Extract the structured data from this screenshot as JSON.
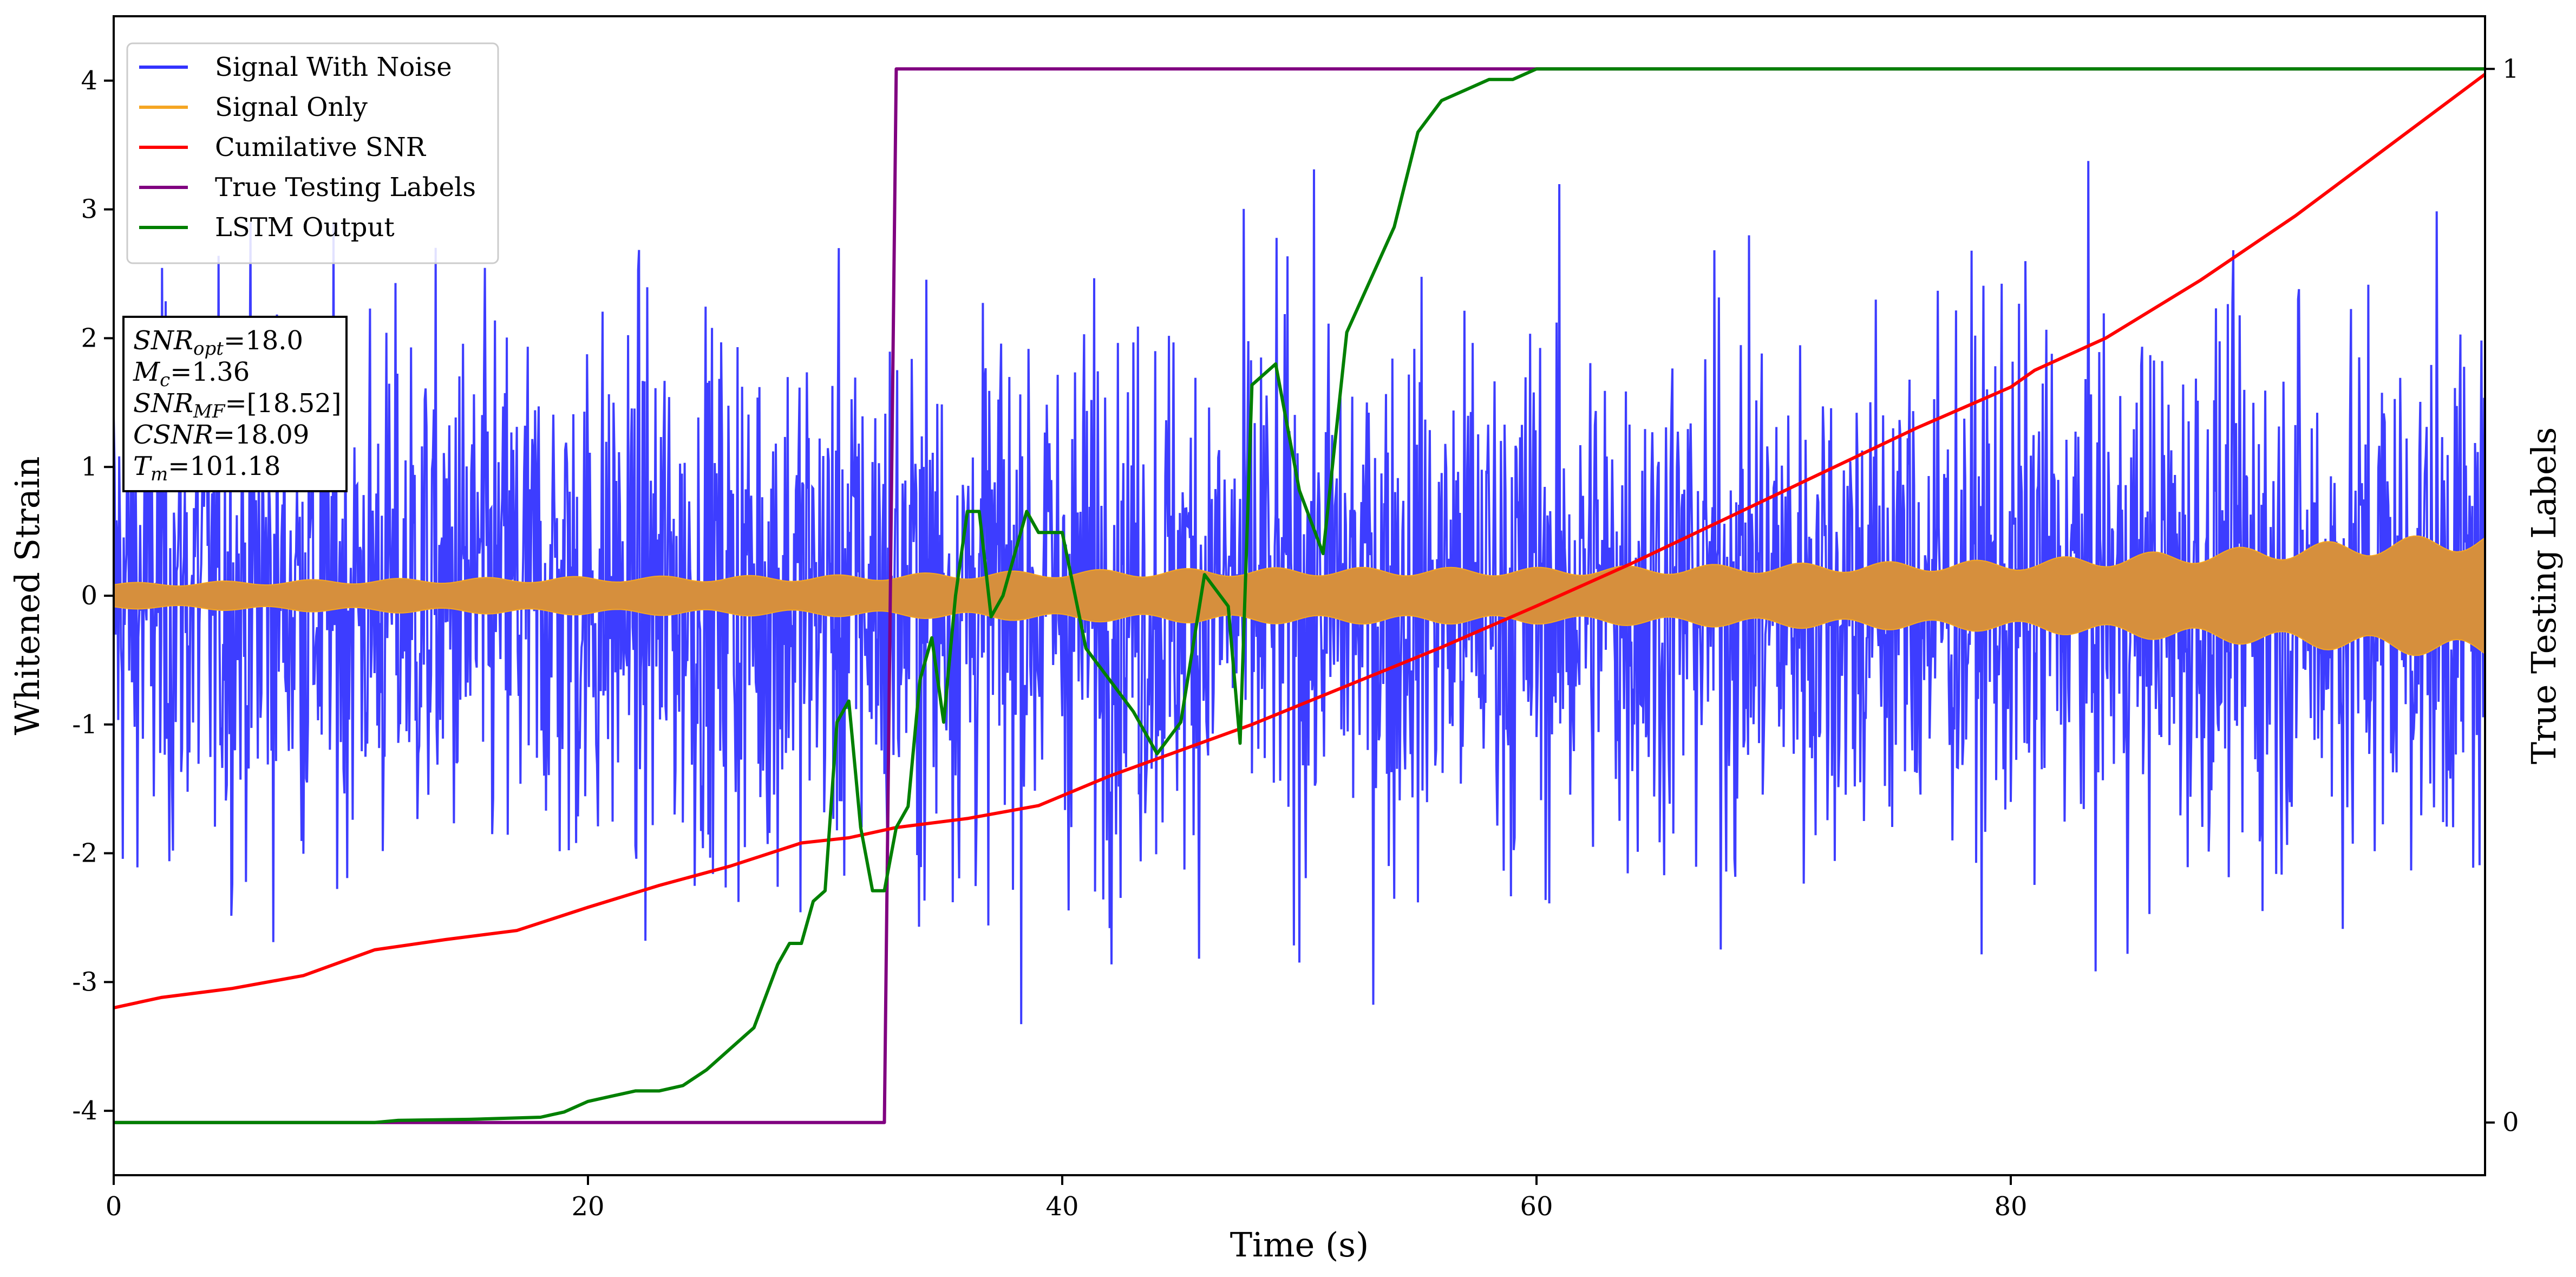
{
  "chart_data": {
    "type": "line",
    "xlabel": "Time (s)",
    "ylabel": "Whitened Strain",
    "y2label": "True Testing Labels",
    "xlim": [
      0,
      100
    ],
    "ylim": [
      -4.5,
      4.5
    ],
    "y2lim": [
      -0.05,
      1.05
    ],
    "x_ticks": [
      0,
      20,
      40,
      60,
      80
    ],
    "y_ticks": [
      -4,
      -3,
      -2,
      -1,
      0,
      1,
      2,
      3,
      4
    ],
    "y2_ticks": [
      0,
      1
    ],
    "grid": false,
    "legend_position": "upper-left",
    "colors": {
      "signal_with_noise": "#3333ff",
      "signal_only": "#f5a623",
      "signal_only_fill": "#d68f3d",
      "cumulative_snr": "#ff0000",
      "true_labels": "#800080",
      "lstm_output": "#008000"
    },
    "series": [
      {
        "name": "Signal With Noise",
        "axis": "left",
        "description_values": "noise band mostly within [-3, 3], spikes to about ±4",
        "envelope_min": -4.05,
        "envelope_max": 4.1
      },
      {
        "name": "Signal Only",
        "axis": "left",
        "amplitude": {
          "x": [
            0,
            10,
            20,
            30,
            40,
            50,
            60,
            70,
            80,
            90,
            100
          ],
          "values": [
            0.1,
            0.13,
            0.15,
            0.16,
            0.2,
            0.22,
            0.22,
            0.25,
            0.28,
            0.38,
            0.5
          ]
        }
      },
      {
        "name": "Cumilative SNR",
        "axis": "left",
        "x": [
          0,
          2,
          5,
          8,
          11,
          14,
          17,
          20,
          23,
          26,
          29,
          31,
          33,
          36,
          39,
          42,
          45,
          48,
          52,
          56,
          60,
          64,
          68,
          72,
          76,
          80,
          81,
          84,
          88,
          92,
          96,
          100
        ],
        "y": [
          -3.2,
          -3.12,
          -3.05,
          -2.95,
          -2.75,
          -2.67,
          -2.6,
          -2.42,
          -2.25,
          -2.1,
          -1.92,
          -1.88,
          -1.8,
          -1.73,
          -1.63,
          -1.4,
          -1.2,
          -1.0,
          -0.7,
          -0.4,
          -0.08,
          0.25,
          0.6,
          0.95,
          1.3,
          1.62,
          1.75,
          2.0,
          2.45,
          2.95,
          3.5,
          4.05
        ]
      },
      {
        "name": "True Testing Labels",
        "axis": "right",
        "x": [
          0,
          32.5,
          33,
          100
        ],
        "y": [
          0,
          0,
          1,
          1
        ]
      },
      {
        "name": "LSTM Output",
        "axis": "right",
        "x": [
          0,
          11,
          12,
          15,
          18,
          19,
          20,
          21,
          22,
          23,
          24,
          25,
          26,
          27,
          28,
          28.5,
          29,
          29.5,
          30,
          30.5,
          31,
          31.5,
          32,
          32.5,
          33,
          33.5,
          34,
          34.5,
          35,
          35.5,
          36,
          36.5,
          37,
          37.5,
          38,
          38.5,
          39,
          39.5,
          40,
          41,
          42,
          43,
          44,
          45,
          46,
          47,
          47.5,
          48,
          49,
          50,
          51,
          52,
          53,
          54,
          55,
          56,
          57,
          58,
          59,
          60,
          62,
          64,
          66,
          100
        ],
        "y": [
          0,
          0,
          0.002,
          0.003,
          0.005,
          0.01,
          0.02,
          0.025,
          0.03,
          0.03,
          0.035,
          0.05,
          0.07,
          0.09,
          0.15,
          0.17,
          0.17,
          0.21,
          0.22,
          0.38,
          0.4,
          0.28,
          0.22,
          0.22,
          0.28,
          0.3,
          0.42,
          0.46,
          0.38,
          0.5,
          0.58,
          0.58,
          0.48,
          0.5,
          0.54,
          0.58,
          0.56,
          0.56,
          0.56,
          0.45,
          0.42,
          0.39,
          0.35,
          0.38,
          0.52,
          0.49,
          0.36,
          0.7,
          0.72,
          0.6,
          0.54,
          0.75,
          0.8,
          0.85,
          0.94,
          0.97,
          0.98,
          0.99,
          0.99,
          1.0,
          1.0,
          1.0,
          1.0,
          1.0
        ]
      }
    ],
    "legend": [
      {
        "label": "Signal With Noise",
        "color": "#3333ff"
      },
      {
        "label": "Signal Only",
        "color": "#f5a623"
      },
      {
        "label": "Cumilative SNR",
        "color": "#ff0000"
      },
      {
        "label": "True Testing Labels",
        "color": "#800080"
      },
      {
        "label": "LSTM Output",
        "color": "#008000"
      }
    ],
    "info_box": [
      {
        "main": "SNR",
        "sub": "opt",
        "rest": "=18.0"
      },
      {
        "main": "M",
        "sub": "c",
        "rest": "=1.36"
      },
      {
        "main": "SNR",
        "sub": "MF",
        "rest": "=[18.52]"
      },
      {
        "main": "CSNR",
        "sub": "",
        "rest": "=18.09"
      },
      {
        "main": "T",
        "sub": "m",
        "rest": "=101.18"
      }
    ]
  }
}
